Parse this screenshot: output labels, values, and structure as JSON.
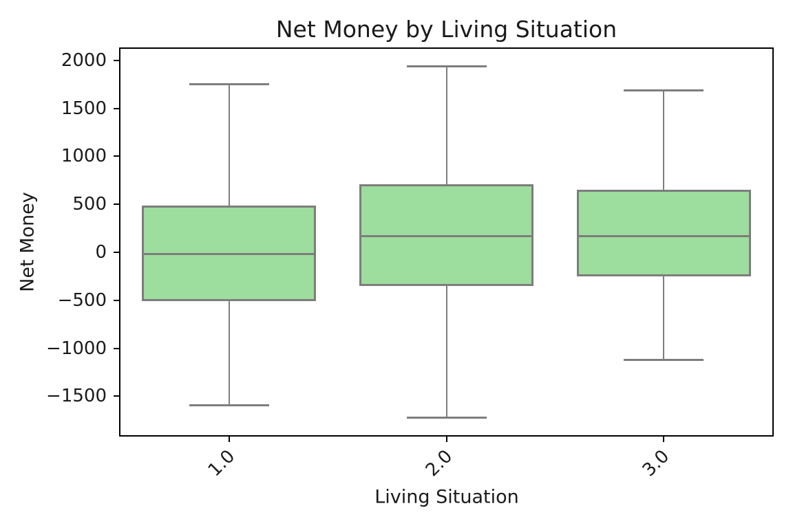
{
  "figure": {
    "title": "Net Money by Living Situation",
    "xlabel": "Living Situation",
    "ylabel": "Net Money"
  },
  "chart_data": {
    "type": "boxplot",
    "title": "Net Money by Living Situation",
    "xlabel": "Living Situation",
    "ylabel": "Net Money",
    "categories": [
      "1.0",
      "2.0",
      "3.0"
    ],
    "series": [
      {
        "name": "1.0",
        "whisker_low": -1590,
        "q1": -510,
        "median": -15,
        "q3": 485,
        "whisker_high": 1750
      },
      {
        "name": "2.0",
        "whisker_low": -1725,
        "q1": -350,
        "median": 170,
        "q3": 710,
        "whisker_high": 1935
      },
      {
        "name": "3.0",
        "whisker_low": -1120,
        "q1": -250,
        "median": 170,
        "q3": 650,
        "whisker_high": 1685
      }
    ],
    "ylim": [
      -1905,
      2120
    ],
    "yticks": [
      2000,
      1500,
      1000,
      500,
      0,
      -500,
      -1000,
      -1500
    ],
    "ytick_labels": [
      "2000",
      "1500",
      "1000",
      "500",
      "0",
      "−500",
      "−1000",
      "−1500"
    ],
    "grid": false,
    "legend": null,
    "colors": {
      "box_fill": "#9DDD9D",
      "box_edge": "#7d7d7d",
      "whisker": "#7d7d7d",
      "median": "#7d7d7d",
      "spine": "#000000",
      "text": "#1a1a1a"
    }
  }
}
